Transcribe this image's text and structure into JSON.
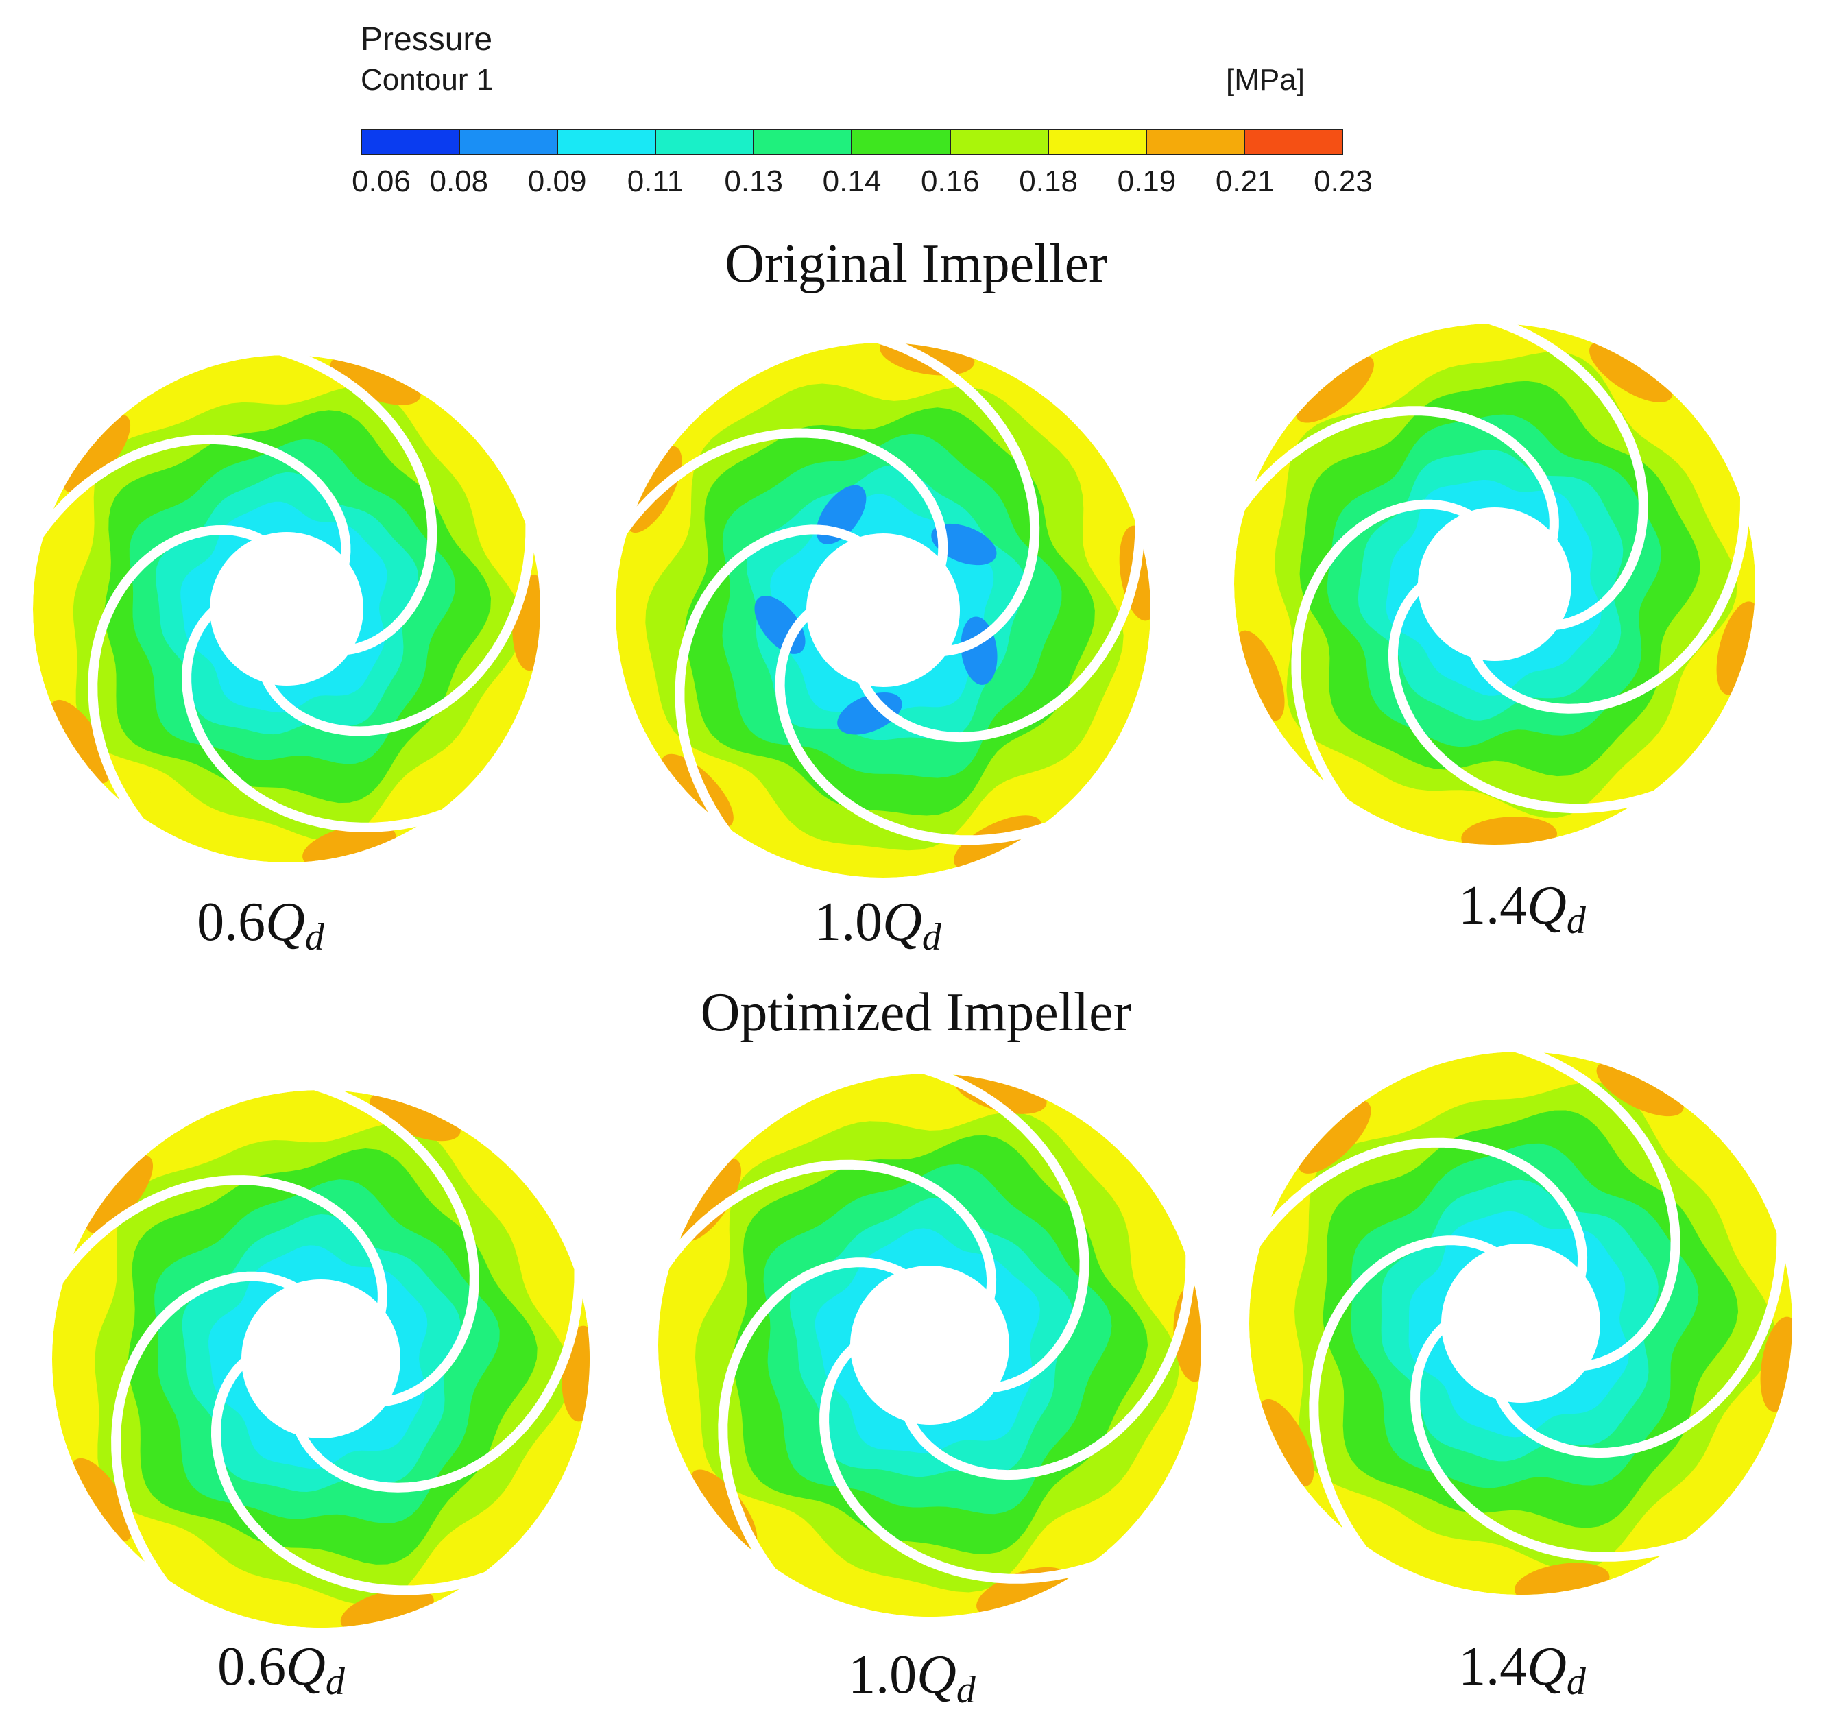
{
  "legend": {
    "title": "Pressure",
    "subtitle": "Contour 1",
    "unit": "[MPa]",
    "ticks": [
      "0.06",
      "0.08",
      "0.09",
      "0.11",
      "0.13",
      "0.14",
      "0.16",
      "0.18",
      "0.19",
      "0.21",
      "0.23"
    ],
    "colors": [
      "#0a3cf0",
      "#1a8ff5",
      "#19e8f5",
      "#19f0c8",
      "#1ff07d",
      "#3ee61f",
      "#aaf50a",
      "#f5f50a",
      "#f5aa0a",
      "#f55014"
    ]
  },
  "sections": [
    {
      "title": "Original Impeller",
      "panels": [
        {
          "caption_num": "0.6",
          "caption_q": "Q",
          "caption_sub": "d"
        },
        {
          "caption_num": "1.0",
          "caption_q": "Q",
          "caption_sub": "d"
        },
        {
          "caption_num": "1.4",
          "caption_q": "Q",
          "caption_sub": "d"
        }
      ]
    },
    {
      "title": "Optimized Impeller",
      "panels": [
        {
          "caption_num": "0.6",
          "caption_q": "Q",
          "caption_sub": "d"
        },
        {
          "caption_num": "1.0",
          "caption_q": "Q",
          "caption_sub": "d"
        },
        {
          "caption_num": "1.4",
          "caption_q": "Q",
          "caption_sub": "d"
        }
      ]
    }
  ]
}
